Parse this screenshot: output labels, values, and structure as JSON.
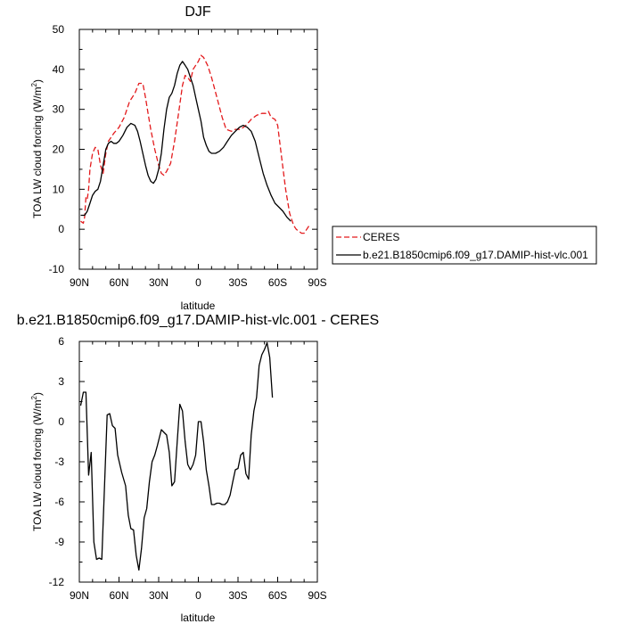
{
  "chart_data": [
    {
      "type": "line",
      "title": "DJF",
      "xlabel": "latitude",
      "ylabel": "TOA LW cloud forcing (W/m",
      "ylabel_sup": "2",
      "ylabel_end": ")",
      "xlim": [
        90,
        -90
      ],
      "ylim": [
        -10,
        50
      ],
      "xticks": [
        90,
        60,
        30,
        0,
        -30,
        -60,
        -90
      ],
      "xticklabels": [
        "90N",
        "60N",
        "30N",
        "0",
        "30S",
        "60S",
        "90S"
      ],
      "yticks": [
        -10,
        0,
        10,
        20,
        30,
        40,
        50
      ],
      "yticklabels": [
        "-10",
        "0",
        "10",
        "20",
        "30",
        "40",
        "50"
      ],
      "legend_position": "right-bottom",
      "series": [
        {
          "name": "CERES",
          "color": "#e31a1c",
          "dash": true,
          "points": [
            [
              89,
              2
            ],
            [
              87,
              1.5
            ],
            [
              86,
              3
            ],
            [
              85,
              8
            ],
            [
              84,
              7.5
            ],
            [
              83,
              10
            ],
            [
              82,
              15
            ],
            [
              80,
              19
            ],
            [
              78,
              20.5
            ],
            [
              76,
              20
            ],
            [
              74,
              16
            ],
            [
              72,
              14
            ],
            [
              70,
              19
            ],
            [
              68,
              22
            ],
            [
              64,
              24
            ],
            [
              60,
              25.5
            ],
            [
              56,
              28
            ],
            [
              52,
              32
            ],
            [
              48,
              34
            ],
            [
              45,
              36.5
            ],
            [
              42,
              36.5
            ],
            [
              40,
              33
            ],
            [
              38,
              29
            ],
            [
              36,
              25
            ],
            [
              33,
              20
            ],
            [
              30,
              16
            ],
            [
              28,
              14
            ],
            [
              26,
              13.5
            ],
            [
              24,
              14.5
            ],
            [
              21,
              16.5
            ],
            [
              18,
              22
            ],
            [
              15,
              29
            ],
            [
              12,
              36
            ],
            [
              10,
              38.5
            ],
            [
              8,
              38
            ],
            [
              6,
              37
            ],
            [
              4,
              40
            ],
            [
              2,
              41
            ],
            [
              0,
              42
            ],
            [
              -2,
              43.5
            ],
            [
              -4,
              43
            ],
            [
              -7,
              41
            ],
            [
              -10,
              38
            ],
            [
              -14,
              33
            ],
            [
              -18,
              28
            ],
            [
              -21,
              25
            ],
            [
              -25,
              24.5
            ],
            [
              -28,
              25
            ],
            [
              -32,
              25
            ],
            [
              -36,
              26
            ],
            [
              -40,
              27.5
            ],
            [
              -44,
              28.5
            ],
            [
              -48,
              29
            ],
            [
              -51,
              29
            ],
            [
              -53,
              29.5
            ],
            [
              -55,
              28
            ],
            [
              -58,
              27.5
            ],
            [
              -60,
              26
            ],
            [
              -63,
              18
            ],
            [
              -66,
              10
            ],
            [
              -69,
              4
            ],
            [
              -72,
              1
            ],
            [
              -74,
              0
            ],
            [
              -76,
              -0.5
            ],
            [
              -78,
              -1
            ],
            [
              -80,
              -1
            ],
            [
              -82,
              0
            ],
            [
              -84,
              1
            ]
          ]
        },
        {
          "name": "b.e21.B1850cmip6.f09_g17.DAMIP-hist-vlc.001",
          "color": "#000000",
          "dash": false,
          "points": [
            [
              89,
              3.5
            ],
            [
              86,
              3.5
            ],
            [
              84,
              4.5
            ],
            [
              82,
              6.5
            ],
            [
              80,
              8.5
            ],
            [
              78,
              9.5
            ],
            [
              76,
              10
            ],
            [
              74,
              12
            ],
            [
              72,
              16
            ],
            [
              70,
              20
            ],
            [
              68,
              21.5
            ],
            [
              66,
              22
            ],
            [
              64,
              21.5
            ],
            [
              62,
              21.5
            ],
            [
              60,
              22
            ],
            [
              57,
              23.5
            ],
            [
              54,
              25.5
            ],
            [
              51,
              26.5
            ],
            [
              48,
              26
            ],
            [
              46,
              24.5
            ],
            [
              44,
              22
            ],
            [
              42,
              19
            ],
            [
              40,
              16
            ],
            [
              38,
              13.5
            ],
            [
              36,
              12
            ],
            [
              34,
              11.5
            ],
            [
              32,
              12.5
            ],
            [
              30,
              15
            ],
            [
              28,
              19
            ],
            [
              26,
              25
            ],
            [
              24,
              30
            ],
            [
              22,
              33
            ],
            [
              20,
              34
            ],
            [
              18,
              36
            ],
            [
              16,
              39
            ],
            [
              14,
              41
            ],
            [
              12,
              42
            ],
            [
              10,
              41
            ],
            [
              8,
              40
            ],
            [
              6,
              38
            ],
            [
              4,
              36
            ],
            [
              2,
              33
            ],
            [
              0,
              30
            ],
            [
              -2,
              27
            ],
            [
              -4,
              23
            ],
            [
              -6,
              21
            ],
            [
              -8,
              19.5
            ],
            [
              -10,
              19
            ],
            [
              -13,
              19
            ],
            [
              -16,
              19.5
            ],
            [
              -19,
              20.5
            ],
            [
              -22,
              22
            ],
            [
              -25,
              23.5
            ],
            [
              -28,
              24.5
            ],
            [
              -31,
              25.5
            ],
            [
              -34,
              26
            ],
            [
              -37,
              25.5
            ],
            [
              -40,
              24.5
            ],
            [
              -43,
              22
            ],
            [
              -46,
              18
            ],
            [
              -49,
              14
            ],
            [
              -52,
              11
            ],
            [
              -55,
              8.5
            ],
            [
              -58,
              6.5
            ],
            [
              -61,
              5.5
            ],
            [
              -64,
              4.5
            ],
            [
              -67,
              3
            ],
            [
              -70,
              2
            ]
          ]
        }
      ]
    },
    {
      "type": "line",
      "title": "b.e21.B1850cmip6.f09_g17.DAMIP-hist-vlc.001 - CERES",
      "xlabel": "latitude",
      "ylabel": "TOA LW cloud forcing (W/m",
      "ylabel_sup": "2",
      "ylabel_end": ")",
      "xlim": [
        90,
        -90
      ],
      "ylim": [
        -12,
        6
      ],
      "xticks": [
        90,
        60,
        30,
        0,
        -30,
        -60,
        -90
      ],
      "xticklabels": [
        "90N",
        "60N",
        "30N",
        "0",
        "30S",
        "60S",
        "90S"
      ],
      "yticks": [
        -12,
        -9,
        -6,
        -3,
        0,
        3,
        6
      ],
      "yticklabels": [
        "-12",
        "-9",
        "-6",
        "-3",
        "0",
        "3",
        "6"
      ],
      "series": [
        {
          "color": "#000000",
          "dash": false,
          "points": [
            [
              89,
              1.2
            ],
            [
              87,
              2.2
            ],
            [
              85,
              2.2
            ],
            [
              83,
              -4
            ],
            [
              81,
              -2.3
            ],
            [
              79,
              -9
            ],
            [
              77,
              -10.3
            ],
            [
              75,
              -10.2
            ],
            [
              73,
              -10.3
            ],
            [
              69,
              0.5
            ],
            [
              67,
              0.6
            ],
            [
              65,
              -0.3
            ],
            [
              63,
              -0.5
            ],
            [
              61,
              -2.5
            ],
            [
              58,
              -3.8
            ],
            [
              55,
              -4.8
            ],
            [
              53,
              -7
            ],
            [
              51,
              -8
            ],
            [
              49,
              -8.1
            ],
            [
              47,
              -10
            ],
            [
              45,
              -11.1
            ],
            [
              43,
              -9.5
            ],
            [
              41,
              -7.2
            ],
            [
              39,
              -6.5
            ],
            [
              37,
              -4.5
            ],
            [
              35,
              -3
            ],
            [
              33,
              -2.5
            ],
            [
              31,
              -1.8
            ],
            [
              29,
              -1
            ],
            [
              28,
              -0.6
            ],
            [
              26,
              -0.8
            ],
            [
              24,
              -1
            ],
            [
              22,
              -2.3
            ],
            [
              20,
              -4.8
            ],
            [
              18,
              -4.5
            ],
            [
              16,
              -1.5
            ],
            [
              14,
              1.3
            ],
            [
              12,
              0.8
            ],
            [
              10,
              -1.5
            ],
            [
              8,
              -3.2
            ],
            [
              6,
              -3.6
            ],
            [
              4,
              -3.2
            ],
            [
              2,
              -2.5
            ],
            [
              0,
              0
            ],
            [
              -2,
              0
            ],
            [
              -4,
              -1.5
            ],
            [
              -6,
              -3.6
            ],
            [
              -8,
              -4.8
            ],
            [
              -10,
              -6.2
            ],
            [
              -12,
              -6.2
            ],
            [
              -14,
              -6.1
            ],
            [
              -16,
              -6.1
            ],
            [
              -18,
              -6.2
            ],
            [
              -20,
              -6.2
            ],
            [
              -22,
              -6
            ],
            [
              -24,
              -5.5
            ],
            [
              -26,
              -4.5
            ],
            [
              -28,
              -3.6
            ],
            [
              -30,
              -3.5
            ],
            [
              -32,
              -2.5
            ],
            [
              -34,
              -2.3
            ],
            [
              -36,
              -3.9
            ],
            [
              -38,
              -4.3
            ],
            [
              -40,
              -1
            ],
            [
              -42,
              0.8
            ],
            [
              -44,
              1.8
            ],
            [
              -46,
              4.2
            ],
            [
              -48,
              5
            ],
            [
              -50,
              5.4
            ],
            [
              -52,
              5.9
            ],
            [
              -54,
              4.8
            ],
            [
              -56,
              1.8
            ]
          ]
        }
      ]
    }
  ]
}
